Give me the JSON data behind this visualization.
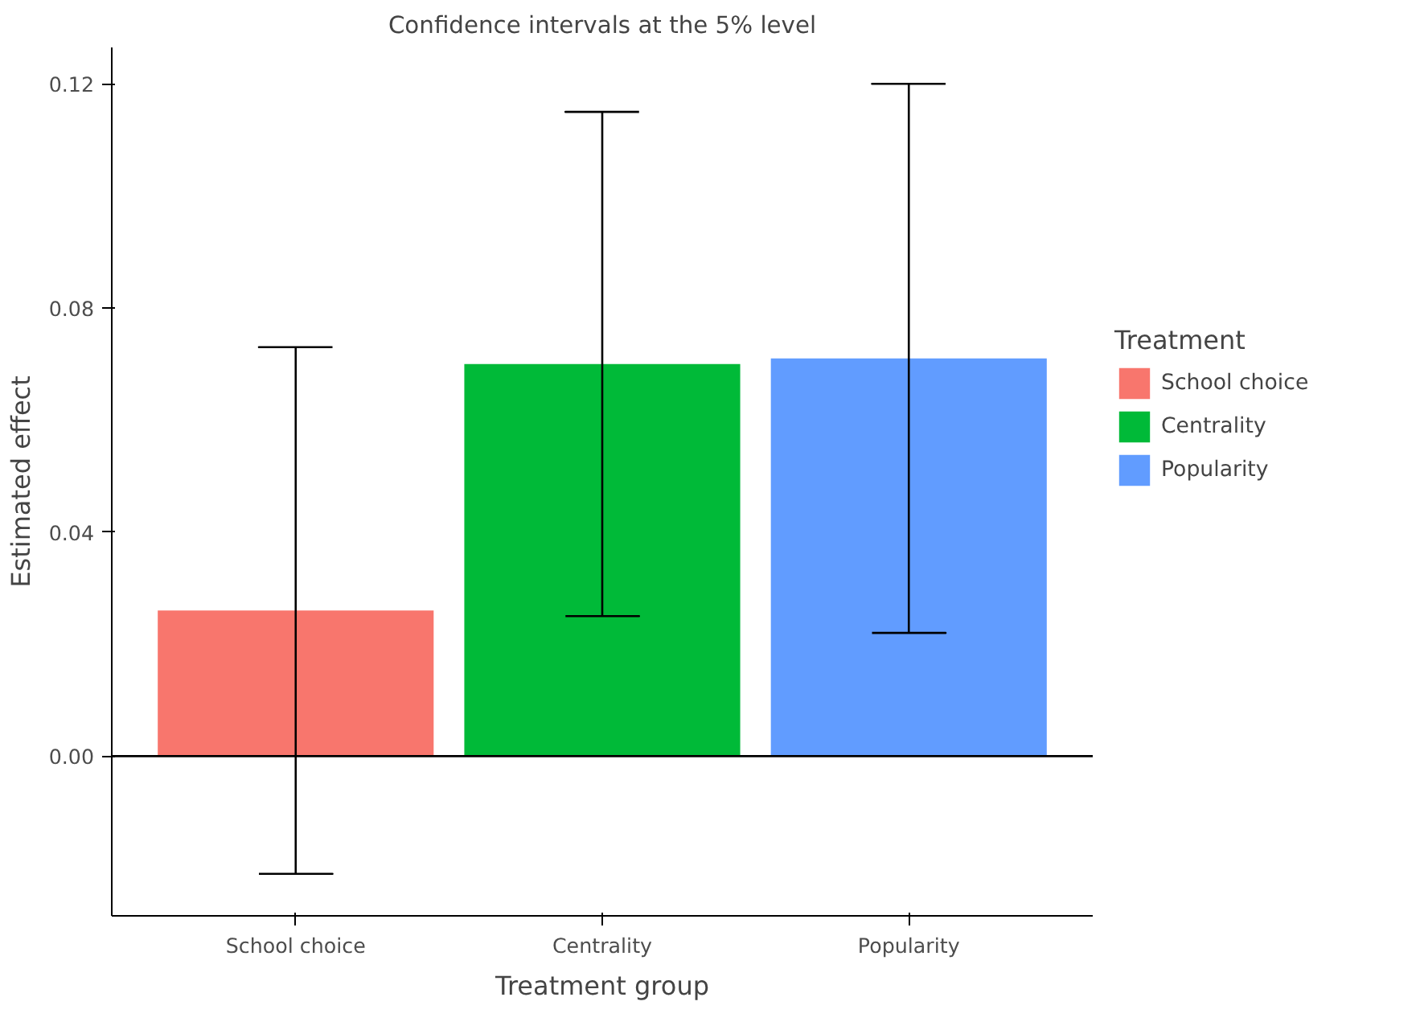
{
  "chart_data": {
    "type": "bar",
    "title": "Confidence intervals at the 5% level",
    "xlabel": "Treatment group",
    "ylabel": "Estimated effect",
    "legend_title": "Treatment",
    "categories": [
      "School choice",
      "Centrality",
      "Popularity"
    ],
    "series": [
      {
        "name": "School choice",
        "color": "#f8766d",
        "values": [
          0.026,
          null,
          null
        ],
        "errors": [
          [
            -0.021,
            0.073
          ],
          null,
          null
        ]
      },
      {
        "name": "Centrality",
        "color": "#00ba38",
        "values": [
          null,
          0.07,
          null
        ],
        "errors": [
          null,
          [
            0.025,
            0.115
          ],
          null
        ]
      },
      {
        "name": "Popularity",
        "color": "#619cff",
        "values": [
          null,
          null,
          0.071
        ],
        "errors": [
          null,
          null,
          [
            0.022,
            0.12
          ]
        ]
      }
    ],
    "ylim": [
      -0.0285,
      0.1265
    ],
    "yticks": [
      {
        "value": 0,
        "label": "0.00"
      },
      {
        "value": 0.04,
        "label": "0.04"
      },
      {
        "value": 0.08,
        "label": "0.08"
      },
      {
        "value": 0.12,
        "label": "0.12"
      }
    ],
    "ref_lines": [
      {
        "axis": "y",
        "value": 0,
        "label": null,
        "color": "#000000"
      }
    ],
    "grid": false,
    "legend": "right"
  }
}
